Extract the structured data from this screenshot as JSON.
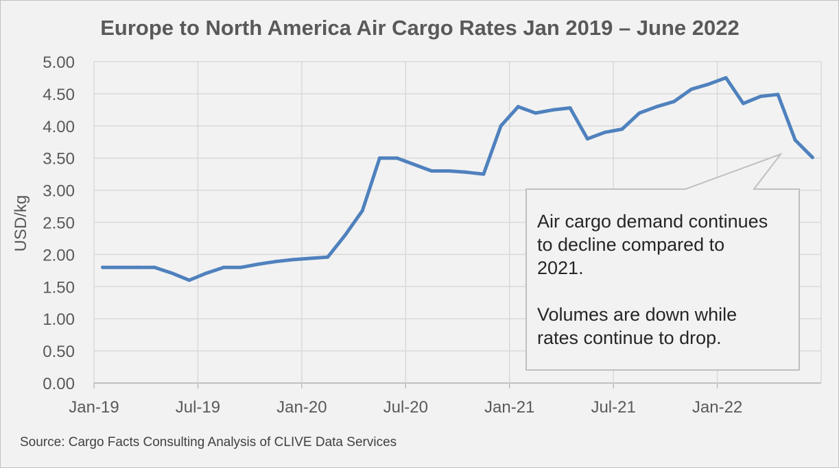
{
  "chart_data": {
    "type": "line",
    "title": "Europe to North America Air Cargo Rates Jan 2019 – June 2022",
    "xlabel": "",
    "ylabel": "USD/kg",
    "ylim": [
      0,
      5
    ],
    "yticks": [
      "0.00",
      "0.50",
      "1.00",
      "1.50",
      "2.00",
      "2.50",
      "3.00",
      "3.50",
      "4.00",
      "4.50",
      "5.00"
    ],
    "xticks": [
      "Jan-19",
      "Jul-19",
      "Jan-20",
      "Jul-20",
      "Jan-21",
      "Jul-21",
      "Jan-22"
    ],
    "grid": true,
    "x": [
      "2019-01",
      "2019-02",
      "2019-03",
      "2019-04",
      "2019-05",
      "2019-06",
      "2019-07",
      "2019-08",
      "2019-09",
      "2019-10",
      "2019-11",
      "2019-12",
      "2020-01",
      "2020-02",
      "2020-03",
      "2020-04",
      "2020-05",
      "2020-06",
      "2020-07",
      "2020-08",
      "2020-09",
      "2020-10",
      "2020-11",
      "2020-12",
      "2021-01",
      "2021-02",
      "2021-03",
      "2021-04",
      "2021-05",
      "2021-06",
      "2021-07",
      "2021-08",
      "2021-09",
      "2021-10",
      "2021-11",
      "2021-12",
      "2022-01",
      "2022-02",
      "2022-03",
      "2022-04",
      "2022-05",
      "2022-06"
    ],
    "series": [
      {
        "color": "#4f81bd",
        "values": [
          1.8,
          1.8,
          1.8,
          1.8,
          1.71,
          1.6,
          1.71,
          1.8,
          1.8,
          1.85,
          1.89,
          1.92,
          1.94,
          1.96,
          2.3,
          2.68,
          3.5,
          3.5,
          3.4,
          3.3,
          3.3,
          3.28,
          3.25,
          4.0,
          4.3,
          4.2,
          4.25,
          4.28,
          3.8,
          3.9,
          3.95,
          4.2,
          4.3,
          4.38,
          4.57,
          4.65,
          4.75,
          4.35,
          4.46,
          4.49,
          3.78,
          3.51
        ]
      }
    ],
    "annotation": {
      "lines": [
        "Air cargo demand continues",
        "to decline compared to",
        "2021.",
        "",
        "Volumes are down while",
        "rates continue to drop."
      ]
    },
    "source": "Source: Cargo Facts Consulting Analysis of CLIVE Data Services"
  }
}
